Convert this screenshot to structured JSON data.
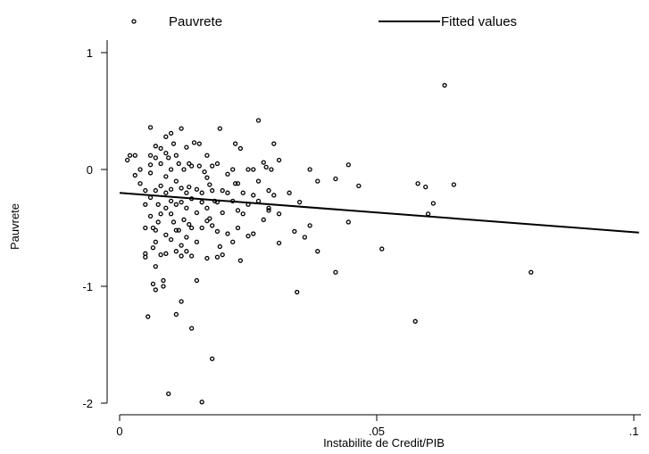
{
  "chart_data": {
    "type": "scatter",
    "title": "",
    "xlabel": "Instabilite de Credit/PIB",
    "ylabel": "Pauvrete",
    "xlim": [
      0,
      0.1
    ],
    "ylim": [
      -2,
      1
    ],
    "x_ticks": [
      0,
      0.05,
      0.1
    ],
    "x_tick_labels": [
      "0",
      ".05",
      ".1"
    ],
    "y_ticks": [
      -2,
      -1,
      0,
      1
    ],
    "y_tick_labels": [
      "-2",
      "-1",
      "0",
      "1"
    ],
    "grid": false,
    "legend": {
      "position": "top",
      "entries": [
        "Pauvrete",
        "Fitted values"
      ]
    },
    "series": [
      {
        "name": "Pauvrete",
        "kind": "scatter",
        "points": [
          [
            0.0015,
            0.08
          ],
          [
            0.002,
            0.12
          ],
          [
            0.003,
            0.12
          ],
          [
            0.003,
            -0.05
          ],
          [
            0.004,
            0.0
          ],
          [
            0.004,
            -0.12
          ],
          [
            0.005,
            -0.18
          ],
          [
            0.005,
            -0.3
          ],
          [
            0.005,
            -0.5
          ],
          [
            0.005,
            -0.72
          ],
          [
            0.005,
            -0.75
          ],
          [
            0.0055,
            -1.26
          ],
          [
            0.006,
            0.36
          ],
          [
            0.006,
            0.12
          ],
          [
            0.006,
            0.04
          ],
          [
            0.006,
            -0.03
          ],
          [
            0.006,
            -0.24
          ],
          [
            0.006,
            -0.4
          ],
          [
            0.0065,
            -0.5
          ],
          [
            0.0065,
            -0.67
          ],
          [
            0.0065,
            -0.98
          ],
          [
            0.007,
            0.2
          ],
          [
            0.007,
            0.1
          ],
          [
            0.007,
            -0.18
          ],
          [
            0.007,
            -0.52
          ],
          [
            0.007,
            -0.62
          ],
          [
            0.007,
            -0.83
          ],
          [
            0.007,
            -1.03
          ],
          [
            0.0075,
            -0.3
          ],
          [
            0.0075,
            -0.45
          ],
          [
            0.008,
            0.18
          ],
          [
            0.008,
            0.05
          ],
          [
            0.008,
            -0.14
          ],
          [
            0.008,
            -0.38
          ],
          [
            0.008,
            -0.73
          ],
          [
            0.0085,
            -0.95
          ],
          [
            0.0085,
            -1.0
          ],
          [
            0.009,
            0.28
          ],
          [
            0.009,
            0.14
          ],
          [
            0.009,
            -0.06
          ],
          [
            0.009,
            -0.2
          ],
          [
            0.009,
            -0.33
          ],
          [
            0.009,
            -0.56
          ],
          [
            0.009,
            -0.72
          ],
          [
            0.0095,
            0.1
          ],
          [
            0.0095,
            -1.92
          ],
          [
            0.01,
            0.31
          ],
          [
            0.01,
            0.0
          ],
          [
            0.01,
            -0.17
          ],
          [
            0.01,
            -0.27
          ],
          [
            0.01,
            -0.38
          ],
          [
            0.01,
            -0.6
          ],
          [
            0.0105,
            0.22
          ],
          [
            0.0105,
            -0.45
          ],
          [
            0.011,
            0.12
          ],
          [
            0.011,
            -0.1
          ],
          [
            0.011,
            -0.3
          ],
          [
            0.011,
            -0.52
          ],
          [
            0.011,
            -0.7
          ],
          [
            0.011,
            -1.24
          ],
          [
            0.0115,
            0.05
          ],
          [
            0.0115,
            -0.52
          ],
          [
            0.012,
            0.35
          ],
          [
            0.012,
            -0.16
          ],
          [
            0.012,
            -0.28
          ],
          [
            0.012,
            -0.65
          ],
          [
            0.012,
            -0.74
          ],
          [
            0.012,
            -1.13
          ],
          [
            0.0125,
            0.0
          ],
          [
            0.0125,
            -0.43
          ],
          [
            0.013,
            0.19
          ],
          [
            0.013,
            -0.2
          ],
          [
            0.013,
            -0.33
          ],
          [
            0.013,
            -0.58
          ],
          [
            0.013,
            -0.7
          ],
          [
            0.0135,
            0.05
          ],
          [
            0.0135,
            -0.15
          ],
          [
            0.0135,
            -0.47
          ],
          [
            0.014,
            0.03
          ],
          [
            0.014,
            -0.25
          ],
          [
            0.014,
            -0.5
          ],
          [
            0.014,
            -0.74
          ],
          [
            0.014,
            -1.36
          ],
          [
            0.0145,
            0.23
          ],
          [
            0.015,
            -0.17
          ],
          [
            0.015,
            -0.37
          ],
          [
            0.015,
            -0.62
          ],
          [
            0.015,
            -0.95
          ],
          [
            0.0155,
            0.22
          ],
          [
            0.0155,
            0.03
          ],
          [
            0.016,
            -0.2
          ],
          [
            0.016,
            -0.28
          ],
          [
            0.016,
            -0.5
          ],
          [
            0.016,
            -1.99
          ],
          [
            0.0165,
            -0.02
          ],
          [
            0.017,
            0.12
          ],
          [
            0.017,
            -0.07
          ],
          [
            0.017,
            -0.33
          ],
          [
            0.017,
            -0.44
          ],
          [
            0.017,
            -0.76
          ],
          [
            0.0175,
            -0.13
          ],
          [
            0.0175,
            -0.42
          ],
          [
            0.018,
            0.03
          ],
          [
            0.018,
            -0.18
          ],
          [
            0.018,
            -0.48
          ],
          [
            0.018,
            -1.62
          ],
          [
            0.0185,
            -0.27
          ],
          [
            0.019,
            0.05
          ],
          [
            0.019,
            -0.28
          ],
          [
            0.019,
            -0.53
          ],
          [
            0.019,
            -0.75
          ],
          [
            0.0195,
            0.35
          ],
          [
            0.0195,
            -0.66
          ],
          [
            0.02,
            -0.18
          ],
          [
            0.02,
            -0.37
          ],
          [
            0.02,
            -0.73
          ],
          [
            0.021,
            -0.04
          ],
          [
            0.021,
            -0.2
          ],
          [
            0.021,
            -0.55
          ],
          [
            0.022,
            0.0
          ],
          [
            0.022,
            -0.27
          ],
          [
            0.022,
            -0.62
          ],
          [
            0.0225,
            0.22
          ],
          [
            0.0225,
            -0.12
          ],
          [
            0.023,
            -0.12
          ],
          [
            0.023,
            -0.35
          ],
          [
            0.023,
            -0.5
          ],
          [
            0.0235,
            0.18
          ],
          [
            0.0235,
            -0.78
          ],
          [
            0.024,
            -0.2
          ],
          [
            0.024,
            -0.38
          ],
          [
            0.025,
            0.0
          ],
          [
            0.025,
            -0.3
          ],
          [
            0.025,
            -0.57
          ],
          [
            0.026,
            0.0
          ],
          [
            0.026,
            -0.22
          ],
          [
            0.026,
            -0.55
          ],
          [
            0.027,
            0.42
          ],
          [
            0.027,
            -0.1
          ],
          [
            0.027,
            -0.27
          ],
          [
            0.028,
            0.06
          ],
          [
            0.028,
            -0.43
          ],
          [
            0.0285,
            0.02
          ],
          [
            0.029,
            -0.18
          ],
          [
            0.029,
            -0.33
          ],
          [
            0.029,
            -0.35
          ],
          [
            0.0295,
            0.0
          ],
          [
            0.03,
            0.22
          ],
          [
            0.03,
            -0.22
          ],
          [
            0.031,
            0.08
          ],
          [
            0.031,
            -0.38
          ],
          [
            0.031,
            -0.63
          ],
          [
            0.033,
            -0.2
          ],
          [
            0.034,
            -0.53
          ],
          [
            0.0345,
            -1.05
          ],
          [
            0.035,
            -0.28
          ],
          [
            0.036,
            -0.58
          ],
          [
            0.037,
            0.0
          ],
          [
            0.037,
            -0.48
          ],
          [
            0.0385,
            -0.1
          ],
          [
            0.0385,
            -0.7
          ],
          [
            0.042,
            -0.08
          ],
          [
            0.042,
            -0.88
          ],
          [
            0.0445,
            0.04
          ],
          [
            0.0445,
            -0.45
          ],
          [
            0.0465,
            -0.14
          ],
          [
            0.051,
            -0.68
          ],
          [
            0.0575,
            -1.3
          ],
          [
            0.058,
            -0.12
          ],
          [
            0.0595,
            -0.15
          ],
          [
            0.06,
            -0.38
          ],
          [
            0.061,
            -0.29
          ],
          [
            0.0632,
            0.72
          ],
          [
            0.065,
            -0.13
          ],
          [
            0.08,
            -0.88
          ]
        ]
      },
      {
        "name": "Fitted values",
        "kind": "line",
        "points": [
          [
            0.0,
            -0.2
          ],
          [
            0.101,
            -0.54
          ]
        ]
      }
    ]
  }
}
